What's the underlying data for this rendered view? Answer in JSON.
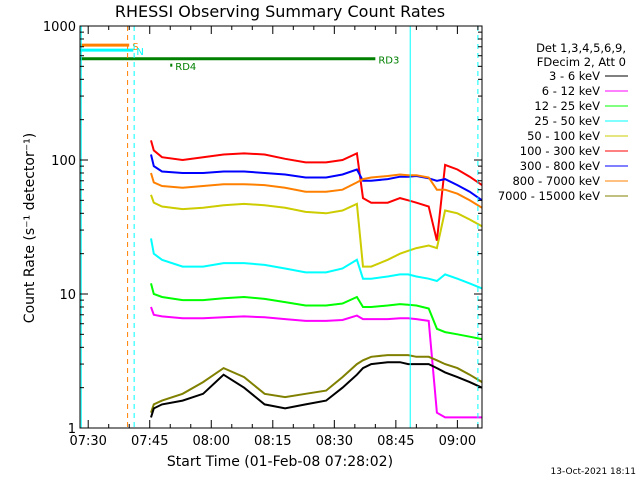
{
  "chart_data": {
    "type": "line",
    "title": "RHESSI Observing Summary Count Rates",
    "xlabel": "Start Time (01-Feb-08 07:28:02)",
    "ylabel": "Count Rate (s⁻¹ detector⁻¹)",
    "yscale": "log",
    "ylim": [
      1,
      1000
    ],
    "xlim_minutes_after_start": [
      0,
      98
    ],
    "x_ticks": [
      {
        "minute": 2,
        "label": "07:30"
      },
      {
        "minute": 17,
        "label": "07:45"
      },
      {
        "minute": 32,
        "label": "08:00"
      },
      {
        "minute": 47,
        "label": "08:15"
      },
      {
        "minute": 62,
        "label": "08:30"
      },
      {
        "minute": 77,
        "label": "08:45"
      },
      {
        "minute": 92,
        "label": "09:00"
      }
    ],
    "y_ticks": [
      {
        "value": 1,
        "label": "1"
      },
      {
        "value": 10,
        "label": "10"
      },
      {
        "value": 100,
        "label": "100"
      },
      {
        "value": 1000,
        "label": "1000"
      }
    ],
    "legend": {
      "position": "right",
      "header": [
        "Det 1,3,4,5,6,9,",
        "FDecim 2, Att 0"
      ],
      "entries": [
        {
          "label": "3 - 6 keV",
          "color": "#000000"
        },
        {
          "label": "6 - 12 keV",
          "color": "#ff00ff"
        },
        {
          "label": "12 - 25 keV",
          "color": "#00ff00"
        },
        {
          "label": "25 - 50 keV",
          "color": "#00ffff"
        },
        {
          "label": "50 - 100 keV",
          "color": "#cccc00"
        },
        {
          "label": "100 - 300 keV",
          "color": "#ff0000"
        },
        {
          "label": "300 - 800 keV",
          "color": "#0000ff"
        },
        {
          "label": "800 - 7000 keV",
          "color": "#ff8000"
        },
        {
          "label": "7000 - 15000 keV",
          "color": "#808000"
        }
      ]
    },
    "series": [
      {
        "name": "100 - 300 keV",
        "color": "#ff0000",
        "x": [
          17.3,
          18,
          20,
          25,
          30,
          35,
          40,
          45,
          50,
          55,
          60,
          64,
          67.5,
          69,
          71,
          75,
          78,
          80,
          82,
          85,
          87,
          89,
          92,
          95,
          98
        ],
        "y": [
          140,
          118,
          105,
          100,
          105,
          110,
          112,
          110,
          102,
          96,
          96,
          100,
          112,
          52,
          48,
          48,
          52,
          50,
          48,
          45,
          25,
          92,
          85,
          75,
          65
        ]
      },
      {
        "name": "300 - 800 keV",
        "color": "#0000ff",
        "x": [
          17.3,
          18,
          20,
          25,
          30,
          35,
          40,
          45,
          50,
          55,
          60,
          64,
          67.5,
          69,
          71,
          75,
          78,
          80,
          82,
          85,
          87,
          89,
          92,
          95,
          98
        ],
        "y": [
          110,
          90,
          82,
          80,
          80,
          82,
          82,
          80,
          78,
          74,
          74,
          78,
          85,
          70,
          70,
          72,
          75,
          75,
          76,
          73,
          70,
          72,
          65,
          58,
          50
        ]
      },
      {
        "name": "800 - 7000 keV",
        "color": "#ff8000",
        "x": [
          17.3,
          18,
          20,
          25,
          30,
          35,
          40,
          45,
          50,
          55,
          60,
          64,
          67.5,
          69,
          71,
          75,
          78,
          80,
          82,
          85,
          87,
          89,
          92,
          95,
          98
        ],
        "y": [
          80,
          68,
          64,
          62,
          64,
          66,
          66,
          65,
          62,
          58,
          58,
          60,
          68,
          72,
          74,
          76,
          78,
          77,
          77,
          74,
          60,
          60,
          56,
          50,
          44
        ]
      },
      {
        "name": "50 - 100 keV",
        "color": "#cccc00",
        "x": [
          17.3,
          18,
          20,
          25,
          30,
          35,
          40,
          45,
          50,
          55,
          60,
          64,
          67.5,
          69,
          71,
          75,
          78,
          80,
          82,
          85,
          87,
          89,
          92,
          95,
          98
        ],
        "y": [
          55,
          48,
          45,
          43,
          44,
          46,
          47,
          46,
          44,
          41,
          40,
          42,
          47,
          16,
          16,
          18,
          20,
          21,
          22,
          23,
          22,
          42,
          40,
          36,
          32
        ]
      },
      {
        "name": "25 - 50 keV",
        "color": "#00ffff",
        "x": [
          17.3,
          18,
          20,
          25,
          30,
          35,
          40,
          45,
          50,
          55,
          60,
          64,
          67.5,
          69,
          71,
          75,
          78,
          80,
          82,
          85,
          87,
          89,
          92,
          95,
          98
        ],
        "y": [
          26,
          20,
          18,
          16,
          16,
          17,
          17,
          16.5,
          15.5,
          14.5,
          14.5,
          15.5,
          18,
          13,
          13,
          13.5,
          14,
          14,
          13.5,
          13,
          12.5,
          14,
          13,
          12,
          11
        ]
      },
      {
        "name": "12 - 25 keV",
        "color": "#00ff00",
        "x": [
          17.3,
          18,
          20,
          25,
          30,
          35,
          40,
          45,
          50,
          55,
          60,
          64,
          67.5,
          69,
          71,
          75,
          78,
          80,
          82,
          85,
          87,
          89,
          92,
          95,
          98
        ],
        "y": [
          12,
          10,
          9.5,
          9,
          9,
          9.3,
          9.5,
          9.2,
          8.7,
          8.2,
          8.2,
          8.5,
          9.5,
          8,
          8,
          8.2,
          8.4,
          8.3,
          8.2,
          7.8,
          5.5,
          5.2,
          5,
          4.8,
          4.6
        ]
      },
      {
        "name": "6 - 12 keV",
        "color": "#ff00ff",
        "x": [
          17.3,
          18,
          20,
          25,
          30,
          35,
          40,
          45,
          50,
          55,
          60,
          64,
          67.5,
          69,
          71,
          75,
          78,
          80,
          82,
          85,
          87,
          89,
          92,
          95,
          98
        ],
        "y": [
          8,
          7,
          6.8,
          6.6,
          6.6,
          6.7,
          6.8,
          6.7,
          6.5,
          6.3,
          6.3,
          6.4,
          6.9,
          6.5,
          6.5,
          6.5,
          6.6,
          6.6,
          6.5,
          6.3,
          1.3,
          1.2,
          1.2,
          1.2,
          1.2
        ]
      },
      {
        "name": "7000 - 15000 keV",
        "color": "#808000",
        "x": [
          17.3,
          18,
          20,
          25,
          30,
          35,
          40,
          45,
          50,
          55,
          60,
          64,
          67.5,
          69,
          71,
          75,
          78,
          80,
          82,
          85,
          87,
          89,
          92,
          95,
          98
        ],
        "y": [
          1.3,
          1.5,
          1.6,
          1.8,
          2.2,
          2.8,
          2.4,
          1.8,
          1.7,
          1.8,
          1.9,
          2.4,
          3,
          3.2,
          3.4,
          3.5,
          3.5,
          3.5,
          3.4,
          3.4,
          3.2,
          3,
          2.8,
          2.5,
          2.2
        ]
      },
      {
        "name": "3 - 6 keV",
        "color": "#000000",
        "x": [
          17.3,
          18,
          20,
          25,
          30,
          35,
          40,
          45,
          50,
          55,
          60,
          64,
          67.5,
          69,
          71,
          75,
          78,
          80,
          82,
          85,
          87,
          89,
          92,
          95,
          98
        ],
        "y": [
          1.2,
          1.4,
          1.5,
          1.6,
          1.8,
          2.5,
          2,
          1.5,
          1.4,
          1.5,
          1.6,
          2,
          2.5,
          2.8,
          3,
          3.1,
          3.1,
          3,
          3,
          3,
          2.8,
          2.6,
          2.4,
          2.2,
          2
        ]
      }
    ],
    "annotations": [
      {
        "label": "S",
        "color": "#ff8000",
        "x_range": [
          0,
          12
        ],
        "level": 720
      },
      {
        "label": "N",
        "color": "#00ffff",
        "x_range": [
          0,
          13
        ],
        "level": 660
      },
      {
        "label": "RD3",
        "color": "#008000",
        "x_range": [
          0,
          72
        ],
        "level": 570
      },
      {
        "label": "RD4",
        "color": "#008000",
        "x_range": [
          22,
          22.5
        ],
        "level": 510
      }
    ],
    "marker_lines": [
      {
        "color": "#00ffff",
        "style": "solid",
        "x": 0.3
      },
      {
        "color": "#ff8000",
        "style": "dashed",
        "x": 11.6
      },
      {
        "color": "#00ffff",
        "style": "dashed",
        "x": 13.2
      },
      {
        "color": "#00ffff",
        "style": "solid",
        "x": 80.5
      },
      {
        "color": "#00ffff",
        "style": "dashed",
        "x": 97
      }
    ],
    "footer_date": "13-Oct-2021 18:11"
  }
}
